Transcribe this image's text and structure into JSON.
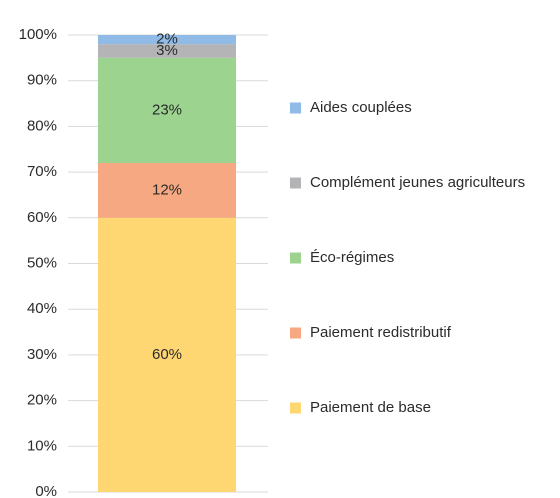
{
  "chart_data": {
    "type": "stacked_bar",
    "categories": [
      null
    ],
    "series": [
      {
        "name": "Paiement de base",
        "color": "#fed672",
        "values": [
          60
        ],
        "value_labels": [
          "60%"
        ]
      },
      {
        "name": "Paiement redistributif",
        "color": "#f6a882",
        "values": [
          12
        ],
        "value_labels": [
          "12%"
        ]
      },
      {
        "name": "Éco-régimes",
        "color": "#9bd38f",
        "values": [
          23
        ],
        "value_labels": [
          "23%"
        ]
      },
      {
        "name": "Complément jeunes agriculteurs",
        "color": "#b4b4b6",
        "values": [
          3
        ],
        "value_labels": [
          "3%"
        ]
      },
      {
        "name": "Aides couplées",
        "color": "#8fbbe6",
        "values": [
          2
        ],
        "value_labels": [
          "2%"
        ]
      }
    ],
    "ylim": [
      0,
      100
    ],
    "yticks": [
      {
        "value": 0,
        "label": "0%"
      },
      {
        "value": 10,
        "label": "10%"
      },
      {
        "value": 20,
        "label": "20%"
      },
      {
        "value": 30,
        "label": "30%"
      },
      {
        "value": 40,
        "label": "40%"
      },
      {
        "value": 50,
        "label": "50%"
      },
      {
        "value": 60,
        "label": "60%"
      },
      {
        "value": 70,
        "label": "70%"
      },
      {
        "value": 80,
        "label": "80%"
      },
      {
        "value": 90,
        "label": "90%"
      },
      {
        "value": 100,
        "label": "100%"
      }
    ],
    "grid": true,
    "legend": "right"
  }
}
